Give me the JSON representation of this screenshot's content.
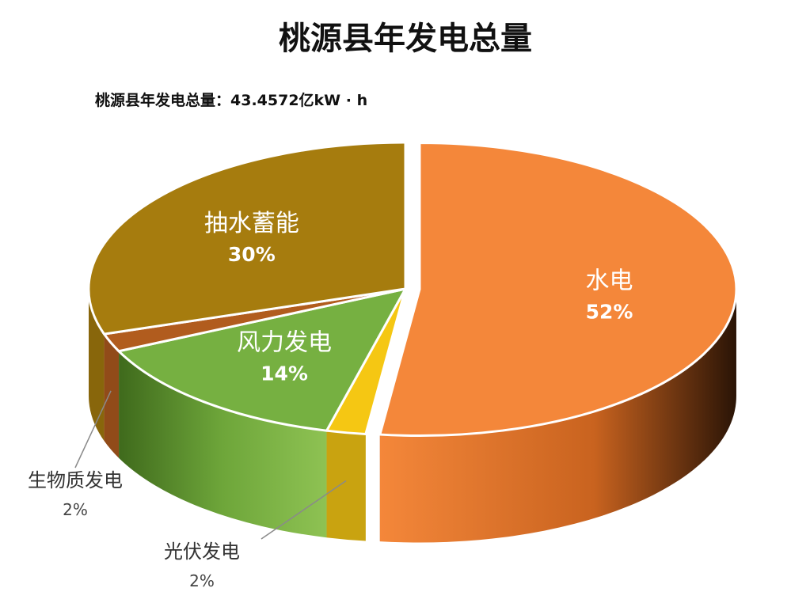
{
  "chart_data": {
    "type": "pie",
    "title": "桃源县年发电总量",
    "subtitle": "桃源县年发电总量：43.4572亿kW · h",
    "series": [
      {
        "name": "水电",
        "value": 52,
        "label": "52%",
        "color": "#F4873A",
        "exploded": true
      },
      {
        "name": "光伏发电",
        "value": 2,
        "label": "2%",
        "color": "#F5C713",
        "exploded": false
      },
      {
        "name": "风力发电",
        "value": 14,
        "label": "14%",
        "color": "#76B041",
        "exploded": false
      },
      {
        "name": "生物质发电",
        "value": 2,
        "label": "2%",
        "color": "#B15C1E",
        "exploded": false
      },
      {
        "name": "抽水蓄能",
        "value": 30,
        "label": "30%",
        "color": "#A67C0E",
        "exploded": false
      }
    ],
    "legend": "none",
    "style": "3d-pie"
  }
}
